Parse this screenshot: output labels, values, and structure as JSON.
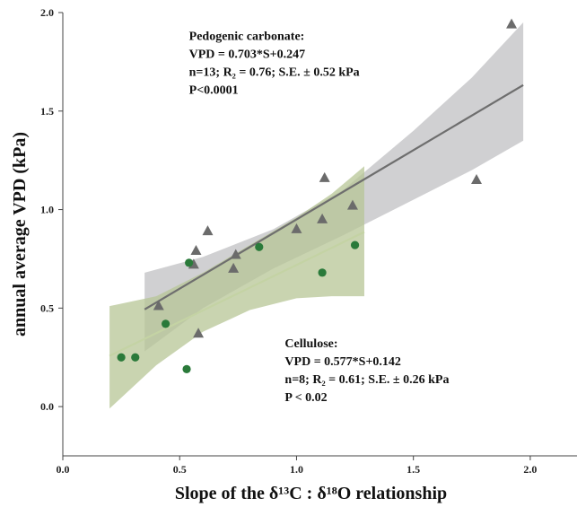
{
  "chart_data": {
    "type": "scatter",
    "xlabel": "Slope of the δ¹³C : δ¹⁸O relationship",
    "ylabel": "annual average VPD (kPa)",
    "xlim": [
      0.0,
      2.2
    ],
    "ylim": [
      -0.25,
      2.0
    ],
    "x_ticks": [
      "0.0",
      "0.5",
      "1.0",
      "1.5",
      "2.0"
    ],
    "y_ticks": [
      "0.0",
      "0.5",
      "1.0",
      "1.5",
      "2.0"
    ],
    "x_tick_values": [
      0.0,
      0.5,
      1.0,
      1.5,
      2.0
    ],
    "y_tick_values": [
      0.0,
      0.5,
      1.0,
      1.5,
      2.0
    ],
    "grid": false,
    "series": [
      {
        "name": "Pedogenic carbonate",
        "marker": "triangle",
        "color": "#6b6b6b",
        "band_color": "#c8c8ca",
        "fit": {
          "slope": 0.703,
          "intercept": 0.247,
          "x_range": [
            0.35,
            1.97
          ]
        },
        "band_x": [
          0.35,
          0.6,
          0.9,
          1.2,
          1.5,
          1.75,
          1.97
        ],
        "band_upper": [
          0.68,
          0.76,
          0.9,
          1.1,
          1.4,
          1.67,
          1.95
        ],
        "band_lower": [
          0.28,
          0.5,
          0.7,
          0.87,
          1.05,
          1.2,
          1.35
        ],
        "points": [
          {
            "x": 0.41,
            "y": 0.51
          },
          {
            "x": 0.56,
            "y": 0.72
          },
          {
            "x": 0.57,
            "y": 0.79
          },
          {
            "x": 0.58,
            "y": 0.37
          },
          {
            "x": 0.62,
            "y": 0.89
          },
          {
            "x": 0.73,
            "y": 0.7
          },
          {
            "x": 0.74,
            "y": 0.77
          },
          {
            "x": 1.0,
            "y": 0.9
          },
          {
            "x": 1.11,
            "y": 0.95
          },
          {
            "x": 1.12,
            "y": 1.16
          },
          {
            "x": 1.24,
            "y": 1.02
          },
          {
            "x": 1.77,
            "y": 1.15
          },
          {
            "x": 1.92,
            "y": 1.94
          }
        ]
      },
      {
        "name": "Cellulose",
        "marker": "circle",
        "color": "#2a7a3a",
        "band_color": "#b7c595",
        "fit": {
          "slope": 0.577,
          "intercept": 0.142,
          "x_range": [
            0.2,
            1.29
          ]
        },
        "band_x": [
          0.2,
          0.4,
          0.6,
          0.8,
          1.0,
          1.15,
          1.29
        ],
        "band_upper": [
          0.51,
          0.56,
          0.68,
          0.82,
          0.96,
          1.08,
          1.22
        ],
        "band_lower": [
          -0.01,
          0.21,
          0.38,
          0.49,
          0.55,
          0.56,
          0.56
        ],
        "points": [
          {
            "x": 0.25,
            "y": 0.25
          },
          {
            "x": 0.31,
            "y": 0.25
          },
          {
            "x": 0.44,
            "y": 0.42
          },
          {
            "x": 0.53,
            "y": 0.19
          },
          {
            "x": 0.54,
            "y": 0.73
          },
          {
            "x": 0.84,
            "y": 0.81
          },
          {
            "x": 1.11,
            "y": 0.68
          },
          {
            "x": 1.25,
            "y": 0.82
          }
        ]
      }
    ],
    "annotations": [
      {
        "id": "carbonate",
        "lines": [
          "Pedogenic carbonate:",
          "VPD = 0.703*S+0.247",
          "n=13; R₂ = 0.76; S.E. ± 0.52 kPa",
          "P<0.0001"
        ],
        "anchor": {
          "x": 0.54,
          "y": 1.86
        }
      },
      {
        "id": "cellulose",
        "lines": [
          "Cellulose:",
          "VPD = 0.577*S+0.142",
          "n=8; R₂ = 0.61; S.E. ± 0.26 kPa",
          "P < 0.02"
        ],
        "anchor": {
          "x": 0.95,
          "y": 0.3
        }
      }
    ]
  }
}
